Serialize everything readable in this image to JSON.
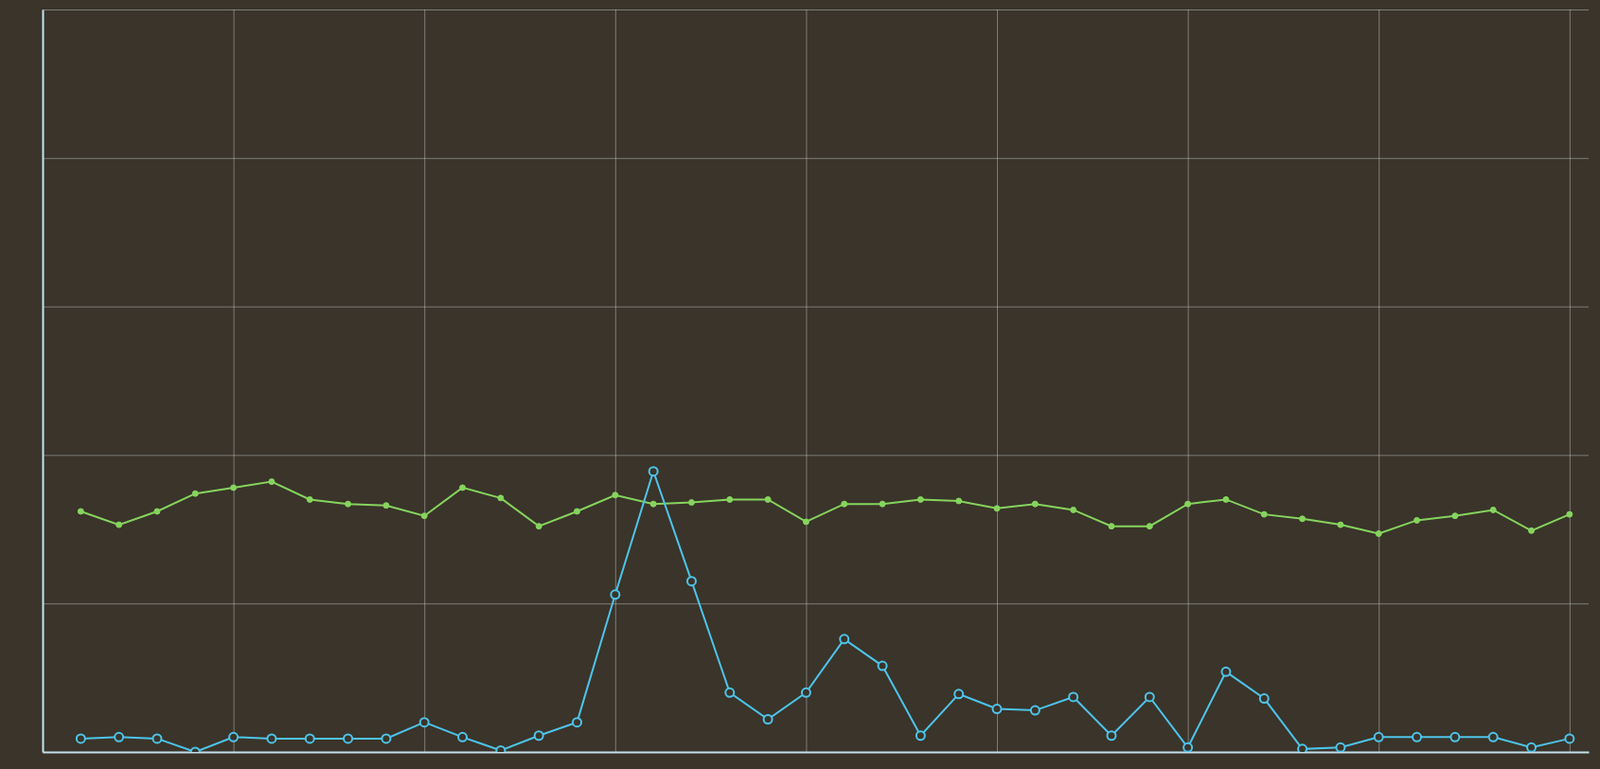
{
  "chart_data": {
    "type": "line",
    "x": [
      1,
      2,
      3,
      4,
      5,
      6,
      7,
      8,
      9,
      10,
      11,
      12,
      13,
      14,
      15,
      16,
      17,
      18,
      19,
      20,
      21,
      22,
      23,
      24,
      25,
      26,
      27,
      28,
      29,
      30,
      31,
      32,
      33,
      34,
      35,
      36,
      37,
      38,
      39,
      40
    ],
    "xlim": [
      0,
      40.5
    ],
    "xticks": [
      5,
      10,
      15,
      20,
      25,
      30,
      35,
      40
    ],
    "ylim": [
      0,
      5
    ],
    "yticks": [
      0,
      1,
      2,
      3,
      4,
      5
    ],
    "grid": true,
    "tick_labels": false,
    "series": [
      {
        "color": "#86d45e",
        "marker": "dot",
        "values": [
          1.62,
          1.53,
          1.62,
          1.74,
          1.78,
          1.82,
          1.7,
          1.67,
          1.66,
          1.59,
          1.78,
          1.71,
          1.52,
          1.62,
          1.73,
          1.67,
          1.68,
          1.7,
          1.7,
          1.55,
          1.67,
          1.67,
          1.7,
          1.69,
          1.64,
          1.67,
          1.63,
          1.52,
          1.52,
          1.67,
          1.7,
          1.6,
          1.57,
          1.53,
          1.47,
          1.56,
          1.59,
          1.63,
          1.49,
          1.6
        ]
      },
      {
        "color": "#4ec4ea",
        "marker": "circle",
        "values": [
          0.09,
          0.1,
          0.09,
          0.0,
          0.1,
          0.09,
          0.09,
          0.09,
          0.09,
          0.2,
          0.1,
          0.01,
          0.11,
          0.2,
          1.06,
          1.89,
          1.15,
          0.4,
          0.22,
          0.4,
          0.76,
          0.58,
          0.11,
          0.39,
          0.29,
          0.28,
          0.37,
          0.11,
          0.37,
          0.03,
          0.54,
          0.36,
          0.02,
          0.03,
          0.1,
          0.1,
          0.1,
          0.1,
          0.03,
          0.09
        ]
      }
    ]
  }
}
